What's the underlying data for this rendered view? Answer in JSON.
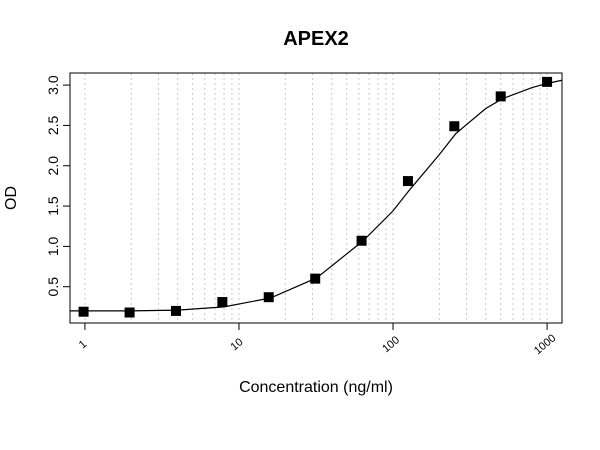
{
  "chart_data": {
    "type": "scatter",
    "title": "APEX2",
    "xlabel": "Concentration (ng/ml)",
    "ylabel": "OD",
    "x_scale": "log",
    "xlim": [
      0.8,
      1250
    ],
    "ylim": [
      0.05,
      3.15
    ],
    "x_tick_values": [
      1,
      10,
      100,
      1000
    ],
    "x_tick_labels": [
      "1",
      "10",
      "100",
      "1000"
    ],
    "y_tick_values": [
      0.5,
      1.0,
      1.5,
      2.0,
      2.5,
      3.0
    ],
    "y_tick_labels": [
      "0.5",
      "1.0",
      "1.5",
      "2.0",
      "2.5",
      "3.0"
    ],
    "grid": "vertical dotted lines at log minor ticks",
    "series": [
      {
        "marker": "filled-square",
        "x": [
          0.98,
          1.95,
          3.9,
          7.8,
          15.6,
          31.25,
          62.5,
          125,
          250,
          500,
          1000
        ],
        "y": [
          0.19,
          0.18,
          0.2,
          0.31,
          0.37,
          0.6,
          1.07,
          1.81,
          2.49,
          2.86,
          3.04
        ]
      },
      {
        "type": "line",
        "style": "fitted sigmoid curve",
        "x": [
          0.8,
          1,
          2,
          4,
          8,
          16,
          32,
          64,
          100,
          128,
          200,
          256,
          400,
          512,
          800,
          1000,
          1250
        ],
        "y": [
          0.2,
          0.2,
          0.2,
          0.21,
          0.25,
          0.36,
          0.61,
          1.07,
          1.44,
          1.7,
          2.14,
          2.4,
          2.71,
          2.83,
          2.97,
          3.02,
          3.06
        ]
      }
    ],
    "colors": {
      "marker": "#000000",
      "line": "#000000",
      "grid": "#c8c8c8",
      "frame": "#000000"
    }
  }
}
